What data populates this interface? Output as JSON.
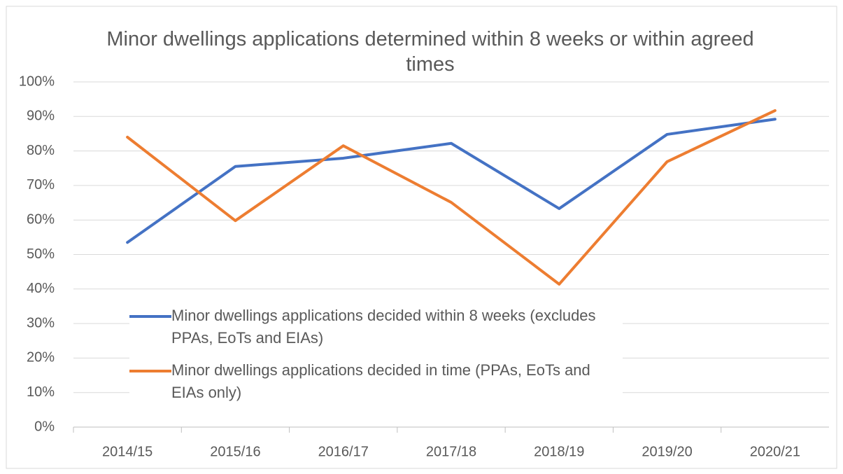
{
  "chart_data": {
    "type": "line",
    "title": "Minor dwellings applications determined within 8 weeks or within agreed times",
    "categories": [
      "2014/15",
      "2015/16",
      "2016/17",
      "2017/18",
      "2018/19",
      "2019/20",
      "2020/21"
    ],
    "series": [
      {
        "name": "Minor dwellings applications decided within 8 weeks (excludes PPAs, EoTs and EIAs)",
        "color": "#4472c4",
        "values": [
          53.5,
          75.5,
          77.9,
          82.2,
          63.3,
          84.8,
          89.2
        ]
      },
      {
        "name": "Minor dwellings applications decided in time (PPAs, EoTs and EIAs only)",
        "color": "#ed7d31",
        "values": [
          84,
          59.8,
          81.5,
          65.1,
          41.4,
          76.9,
          91.7
        ]
      }
    ],
    "ylim": [
      0,
      100
    ],
    "yticks": [
      {
        "value": 0,
        "label": "0%"
      },
      {
        "value": 10,
        "label": "10%"
      },
      {
        "value": 20,
        "label": "20%"
      },
      {
        "value": 30,
        "label": "30%"
      },
      {
        "value": 40,
        "label": "40%"
      },
      {
        "value": 50,
        "label": "50%"
      },
      {
        "value": 60,
        "label": "60%"
      },
      {
        "value": 70,
        "label": "70%"
      },
      {
        "value": 80,
        "label": "80%"
      },
      {
        "value": 90,
        "label": "90%"
      },
      {
        "value": 100,
        "label": "100%"
      }
    ],
    "grid": true
  }
}
